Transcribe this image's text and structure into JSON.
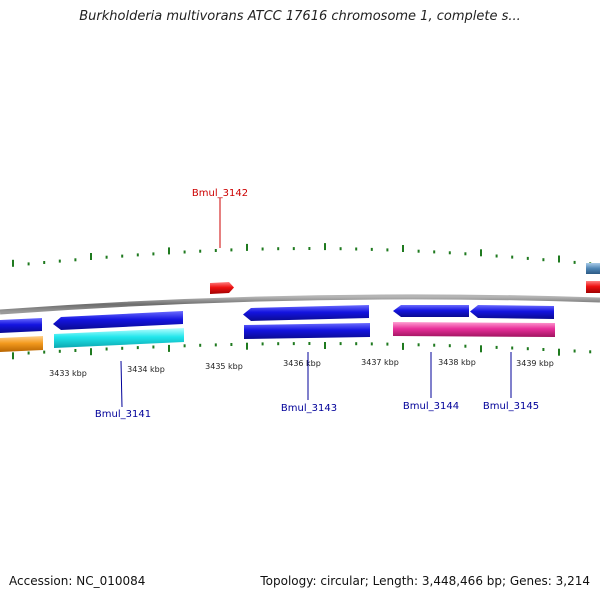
{
  "title": "Burkholderia multivorans ATCC 17616 chromosome 1, complete s...",
  "footer": {
    "accession": "Accession: NC_010084",
    "summary": "Topology: circular; Length: 3,448,466 bp; Genes: 3,214"
  },
  "colors": {
    "backbone": "#7a7a7a",
    "tick": "#1f7a1f",
    "forward_gene_label": "#cc0000",
    "reverse_gene_label": "#000099",
    "blue": "#1010d8",
    "cyan": "#22e6ec",
    "pink": "#e82f9a",
    "orange": "#f39a1e",
    "red": "#ee1111",
    "steel": "#4f86b5"
  },
  "scale_labels": [
    "3433 kbp",
    "3434 kbp",
    "3435 kbp",
    "3436 kbp",
    "3437 kbp",
    "3438 kbp",
    "3439 kbp"
  ],
  "gene_labels": [
    {
      "text": "Bmul_3142",
      "strand": "forward"
    },
    {
      "text": "Bmul_3141",
      "strand": "reverse"
    },
    {
      "text": "Bmul_3143",
      "strand": "reverse"
    },
    {
      "text": "Bmul_3144",
      "strand": "reverse"
    },
    {
      "text": "Bmul_3145",
      "strand": "reverse"
    }
  ]
}
